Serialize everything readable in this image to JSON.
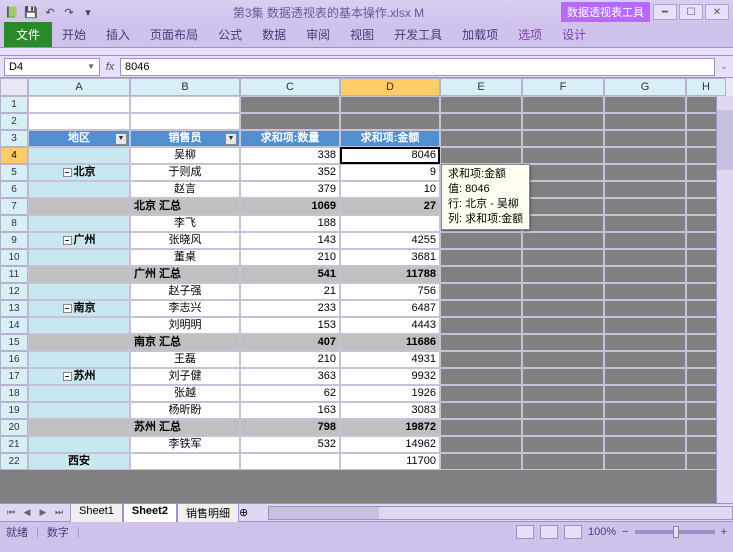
{
  "window": {
    "title": "第3集 数据透视表的基本操作.xlsx M",
    "context_tool": "数据透视表工具"
  },
  "ribbon": {
    "file": "文件",
    "tabs": [
      "开始",
      "插入",
      "页面布局",
      "公式",
      "数据",
      "审阅",
      "视图",
      "开发工具",
      "加载项"
    ],
    "context_tabs": [
      "选项",
      "设计"
    ]
  },
  "namebox": "D4",
  "formula": "8046",
  "columns": [
    "A",
    "B",
    "C",
    "D",
    "E",
    "F",
    "G",
    "H"
  ],
  "pivot": {
    "headers": [
      "地区",
      "销售员",
      "求和项:数量",
      "求和项:金额"
    ],
    "rows": [
      {
        "r": 4,
        "name": "吴柳",
        "qty": 338,
        "amt": 8046,
        "active": true
      },
      {
        "r": 5,
        "region": "北京",
        "exp": true,
        "name": "于则成",
        "qty": 352,
        "amt": "9"
      },
      {
        "r": 6,
        "name": "赵言",
        "qty": 379,
        "amt": "10"
      },
      {
        "r": 7,
        "subtotal": "北京 汇总",
        "qty": 1069,
        "amt": "27"
      },
      {
        "r": 8,
        "name": "李飞",
        "qty": 188,
        "amt": ""
      },
      {
        "r": 9,
        "region": "广州",
        "exp": true,
        "name": "张晓风",
        "qty": 143,
        "amt": 4255
      },
      {
        "r": 10,
        "name": "董桌",
        "qty": 210,
        "amt": 3681
      },
      {
        "r": 11,
        "subtotal": "广州 汇总",
        "qty": 541,
        "amt": 11788
      },
      {
        "r": 12,
        "name": "赵子强",
        "qty": 21,
        "amt": 756
      },
      {
        "r": 13,
        "region": "南京",
        "exp": true,
        "name": "李志兴",
        "qty": 233,
        "amt": 6487
      },
      {
        "r": 14,
        "name": "刘明明",
        "qty": 153,
        "amt": 4443
      },
      {
        "r": 15,
        "subtotal": "南京 汇总",
        "qty": 407,
        "amt": 11686
      },
      {
        "r": 16,
        "name": "王磊",
        "qty": 210,
        "amt": 4931
      },
      {
        "r": 17,
        "region": "苏州",
        "exp": true,
        "name": "刘子健",
        "qty": 363,
        "amt": 9932
      },
      {
        "r": 18,
        "name": "张越",
        "qty": 62,
        "amt": 1926
      },
      {
        "r": 19,
        "name": "杨昕盼",
        "qty": 163,
        "amt": 3083
      },
      {
        "r": 20,
        "subtotal": "苏州 汇总",
        "qty": 798,
        "amt": 19872
      },
      {
        "r": 21,
        "name": "李铁军",
        "qty": 532,
        "amt": 14962
      },
      {
        "r": 22,
        "region": "西安",
        "qty": "",
        "amt": "11700"
      }
    ]
  },
  "tooltip": {
    "l1": "求和项:金额",
    "l2": "值: 8046",
    "l3": "行: 北京 - 吴柳",
    "l4": "列: 求和项:金额"
  },
  "sheets": [
    "Sheet1",
    "Sheet2",
    "销售明细"
  ],
  "active_sheet": 1,
  "status": {
    "ready": "就绪",
    "mode": "数字",
    "zoom": "100%"
  }
}
